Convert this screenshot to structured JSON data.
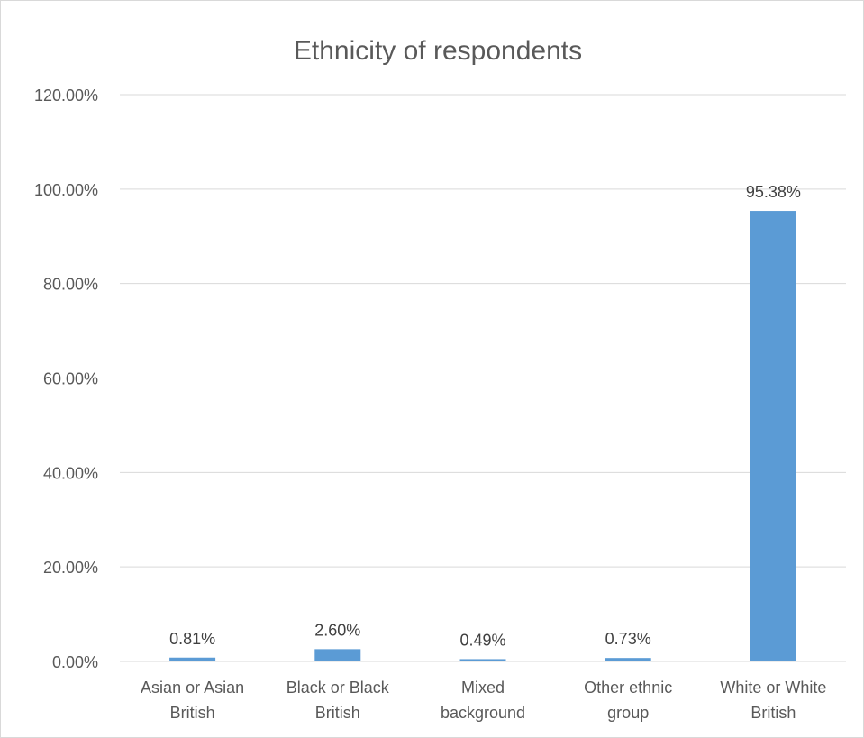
{
  "chart_data": {
    "type": "bar",
    "title": "Ethnicity of respondents",
    "xlabel": "",
    "ylabel": "",
    "categories": [
      [
        "Asian or Asian",
        "British"
      ],
      [
        "Black or Black",
        "British"
      ],
      [
        "Mixed",
        "background"
      ],
      [
        "Other ethnic",
        "group"
      ],
      [
        "White or White",
        "British"
      ]
    ],
    "values": [
      0.81,
      2.6,
      0.49,
      0.73,
      95.38
    ],
    "data_labels": [
      "0.81%",
      "2.60%",
      "0.49%",
      "0.73%",
      "95.38%"
    ],
    "ylim": [
      0,
      120
    ],
    "yticks": [
      0,
      20,
      40,
      60,
      80,
      100,
      120
    ],
    "ytick_labels": [
      "0.00%",
      "20.00%",
      "40.00%",
      "60.00%",
      "80.00%",
      "100.00%",
      "120.00%"
    ],
    "grid": true,
    "legend": "none",
    "bar_color": "#5b9bd5"
  }
}
